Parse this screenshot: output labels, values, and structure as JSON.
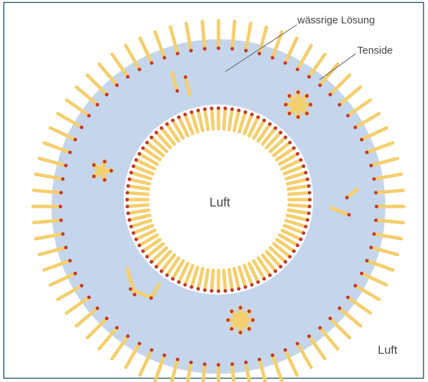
{
  "labels": {
    "solution": "wässrige Lösung",
    "surfactants": "Tenside",
    "air_inside": "Luft",
    "air_outside": "Luft"
  }
}
